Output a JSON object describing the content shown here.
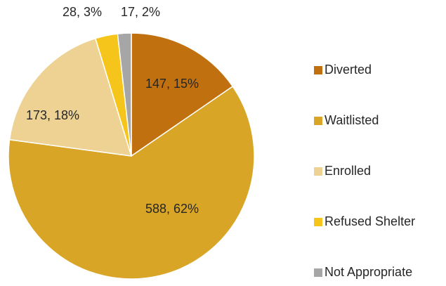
{
  "chart_data": {
    "type": "pie",
    "categories": [
      "Diverted",
      "Waitlisted",
      "Enrolled",
      "Refused Shelter",
      "Not Appropriate"
    ],
    "values": [
      147,
      588,
      173,
      28,
      17
    ],
    "value_labels": [
      "147, 15%",
      "588, 62%",
      "173, 18%",
      "28, 3%",
      "17, 2%"
    ],
    "colors": [
      "#c0700f",
      "#d9a526",
      "#eed293",
      "#f6c51b",
      "#a6a6a6"
    ],
    "legend": "right"
  }
}
